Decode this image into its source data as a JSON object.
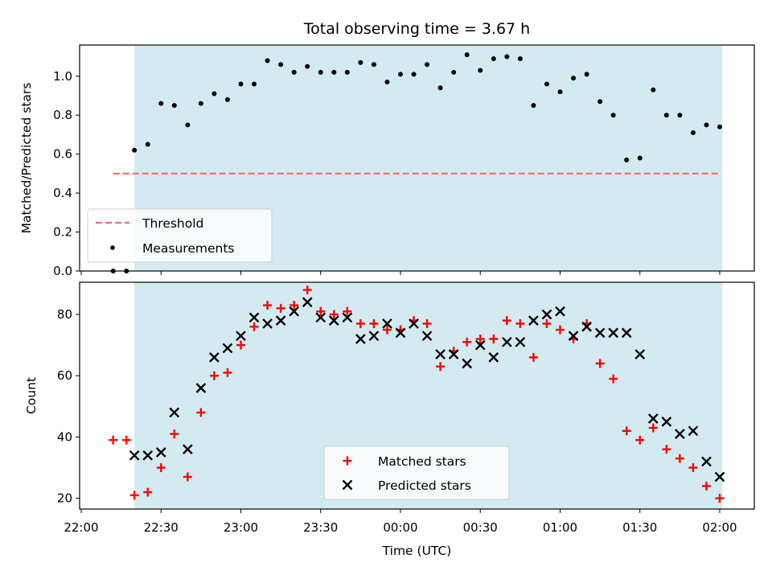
{
  "chart_data": [
    {
      "type": "scatter",
      "title": "Total observing time = 3.67 h",
      "xlabel": "",
      "ylabel": "Matched/Predicted stars",
      "xlim": [
        "22:00",
        "02:00"
      ],
      "ylim": [
        0,
        1.16
      ],
      "y_ticks": [
        "0.0",
        "0.2",
        "0.4",
        "0.6",
        "0.8",
        "1.0"
      ],
      "shaded_span": [
        "22:20",
        "02:01"
      ],
      "shade_color": "#d4eaf1",
      "threshold": {
        "name": "Threshold",
        "value": 0.5,
        "x_range": [
          "22:12",
          "02:00"
        ],
        "color": "#f07070"
      },
      "legend": [
        "Threshold",
        "Measurements"
      ],
      "legend_position": "lower-left",
      "series": [
        {
          "name": "Measurements",
          "color": "#000000",
          "x": [
            "22:12",
            "22:17",
            "22:20",
            "22:25",
            "22:30",
            "22:35",
            "22:40",
            "22:45",
            "22:50",
            "22:55",
            "23:00",
            "23:05",
            "23:10",
            "23:15",
            "23:20",
            "23:25",
            "23:30",
            "23:35",
            "23:40",
            "23:45",
            "23:50",
            "23:55",
            "00:00",
            "00:05",
            "00:10",
            "00:15",
            "00:20",
            "00:25",
            "00:30",
            "00:35",
            "00:40",
            "00:45",
            "00:50",
            "00:55",
            "01:00",
            "01:05",
            "01:10",
            "01:15",
            "01:20",
            "01:25",
            "01:30",
            "01:35",
            "01:40",
            "01:45",
            "01:50",
            "01:55",
            "02:00"
          ],
          "y": [
            0,
            0,
            0.62,
            0.65,
            0.86,
            0.85,
            0.75,
            0.86,
            0.91,
            0.88,
            0.96,
            0.96,
            1.08,
            1.06,
            1.02,
            1.05,
            1.02,
            1.02,
            1.02,
            1.07,
            1.06,
            0.97,
            1.01,
            1.01,
            1.06,
            0.94,
            1.02,
            1.11,
            1.03,
            1.09,
            1.1,
            1.09,
            0.85,
            0.96,
            0.92,
            0.99,
            1.01,
            0.87,
            0.8,
            0.57,
            0.58,
            0.93,
            0.8,
            0.8,
            0.71,
            0.75,
            0.74
          ]
        }
      ]
    },
    {
      "type": "scatter",
      "title": "",
      "xlabel": "Time (UTC)",
      "ylabel": "Count",
      "xlim": [
        "22:00",
        "02:00"
      ],
      "ylim": [
        16.5,
        90.5
      ],
      "x_ticks": [
        "22:00",
        "22:30",
        "23:00",
        "23:30",
        "00:00",
        "00:30",
        "01:00",
        "01:30",
        "02:00"
      ],
      "y_ticks": [
        "20",
        "40",
        "60",
        "80"
      ],
      "shaded_span": [
        "22:20",
        "02:01"
      ],
      "shade_color": "#d4eaf1",
      "legend": [
        "Matched stars",
        "Predicted stars"
      ],
      "legend_position": "lower-center",
      "series": [
        {
          "name": "Matched stars",
          "marker": "plus",
          "color": "#ff0000",
          "x": [
            "22:12",
            "22:17",
            "22:20",
            "22:25",
            "22:30",
            "22:35",
            "22:40",
            "22:45",
            "22:50",
            "22:55",
            "23:00",
            "23:05",
            "23:10",
            "23:15",
            "23:20",
            "23:25",
            "23:30",
            "23:35",
            "23:40",
            "23:45",
            "23:50",
            "23:55",
            "00:00",
            "00:05",
            "00:10",
            "00:15",
            "00:20",
            "00:25",
            "00:30",
            "00:35",
            "00:40",
            "00:45",
            "00:50",
            "00:55",
            "01:00",
            "01:05",
            "01:10",
            "01:15",
            "01:20",
            "01:25",
            "01:30",
            "01:35",
            "01:40",
            "01:45",
            "01:50",
            "01:55",
            "02:00"
          ],
          "y": [
            39,
            39,
            21,
            22,
            30,
            41,
            27,
            48,
            60,
            61,
            70,
            76,
            83,
            82,
            83,
            88,
            81,
            80,
            81,
            77,
            77,
            75,
            75,
            78,
            77,
            63,
            68,
            71,
            72,
            72,
            78,
            77,
            66,
            77,
            75,
            72,
            77,
            64,
            59,
            42,
            39,
            43,
            36,
            33,
            30,
            24,
            20
          ]
        },
        {
          "name": "Predicted stars",
          "marker": "x",
          "color": "#000000",
          "x": [
            "22:20",
            "22:25",
            "22:30",
            "22:35",
            "22:40",
            "22:45",
            "22:50",
            "22:55",
            "23:00",
            "23:05",
            "23:10",
            "23:15",
            "23:20",
            "23:25",
            "23:30",
            "23:35",
            "23:40",
            "23:45",
            "23:50",
            "23:55",
            "00:00",
            "00:05",
            "00:10",
            "00:15",
            "00:20",
            "00:25",
            "00:30",
            "00:35",
            "00:40",
            "00:45",
            "00:50",
            "00:55",
            "01:00",
            "01:05",
            "01:10",
            "01:15",
            "01:20",
            "01:25",
            "01:30",
            "01:35",
            "01:40",
            "01:45",
            "01:50",
            "01:55",
            "02:00"
          ],
          "y": [
            34,
            34,
            35,
            48,
            36,
            56,
            66,
            69,
            73,
            79,
            77,
            78,
            81,
            84,
            79,
            78,
            79,
            72,
            73,
            77,
            74,
            77,
            73,
            67,
            67,
            64,
            70,
            66,
            71,
            71,
            78,
            80,
            81,
            73,
            76,
            74,
            74,
            74,
            67,
            46,
            45,
            41,
            42,
            32,
            27
          ]
        }
      ]
    }
  ]
}
